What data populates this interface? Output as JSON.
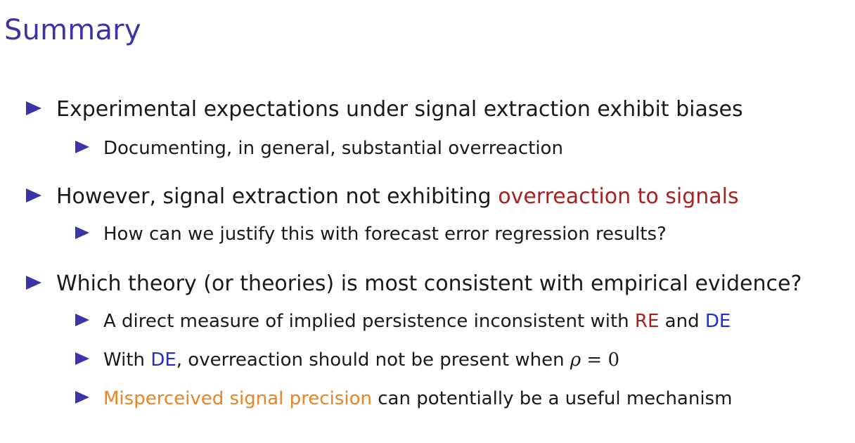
{
  "slide": {
    "title": "Summary",
    "accent_color": "#3a34a6",
    "highlight_colors": {
      "red": "#a82020",
      "blue": "#1f2ecf",
      "orange": "#e88426"
    },
    "bullet_icon": "triangle-right-icon"
  },
  "bullets": {
    "b1": {
      "text": "Experimental expectations under signal extraction exhibit biases"
    },
    "b1_1": {
      "text": "Documenting, in general, substantial overreaction"
    },
    "b2": {
      "before": "However, signal extraction not exhibiting ",
      "highlight": "overreaction to signals"
    },
    "b2_1": {
      "text": "How can we justify this with forecast error regression results?"
    },
    "b3": {
      "text": "Which theory (or theories) is most consistent with empirical evidence?"
    },
    "b3_1": {
      "before": "A direct measure of implied persistence inconsistent with ",
      "re": "RE",
      "and": " and ",
      "de": "DE"
    },
    "b3_2": {
      "before": "With ",
      "de": "DE",
      "after": ", overreaction should not be present when ",
      "math_var": "ρ",
      "math_op": " = ",
      "math_val": "0"
    },
    "b3_3": {
      "highlight": "Misperceived signal precision",
      "after": " can potentially be a useful mechanism"
    }
  }
}
